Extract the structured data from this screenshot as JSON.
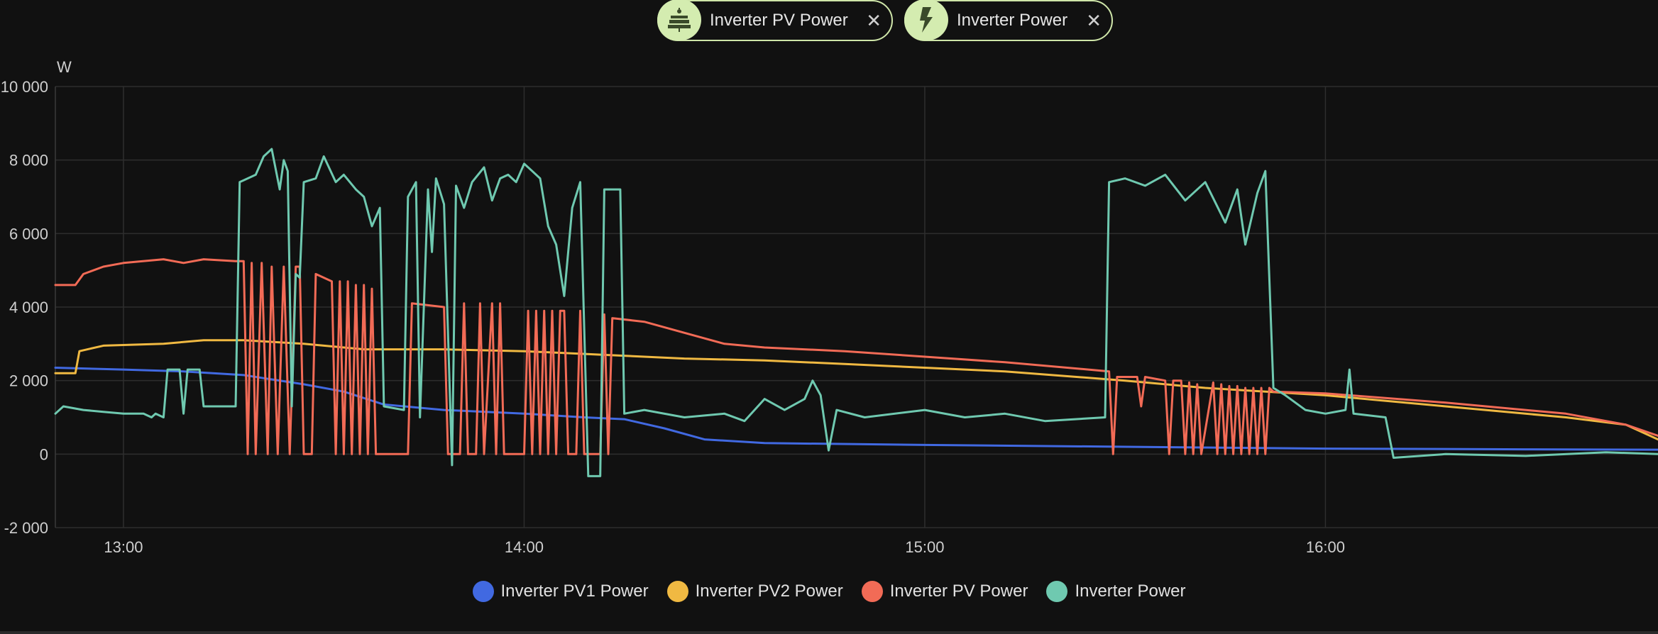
{
  "filters": [
    {
      "label": "Inverter PV Power",
      "icon": "solar-panel-icon",
      "close": "✕"
    },
    {
      "label": "Inverter Power",
      "icon": "lightning-bolt-icon",
      "close": "✕"
    }
  ],
  "colors": {
    "background": "#111111",
    "grid": "#2e2e2e",
    "axis_text": "#cfcfcf",
    "chip_border": "#cfe6a9",
    "chip_icon_bg": "#d4ecb0"
  },
  "chart_data": {
    "type": "line",
    "ylabel": "W",
    "xlabel": "",
    "ylim": [
      -2000,
      10000
    ],
    "yticks": [
      -2000,
      0,
      2000,
      4000,
      6000,
      8000,
      10000
    ],
    "ytick_labels": [
      "-2 000",
      "0",
      "2 000",
      "4 000",
      "6 000",
      "8 000",
      "10 000"
    ],
    "xlim": [
      12.83,
      16.83
    ],
    "xticks": [
      13,
      14,
      15,
      16
    ],
    "xtick_labels": [
      "13:00",
      "14:00",
      "15:00",
      "16:00"
    ],
    "grid": true,
    "legend_position": "bottom-center",
    "series": [
      {
        "name": "Inverter PV1 Power",
        "color": "#4169e1",
        "points": [
          [
            12.83,
            2350
          ],
          [
            13.0,
            2300
          ],
          [
            13.15,
            2250
          ],
          [
            13.3,
            2150
          ],
          [
            13.45,
            1900
          ],
          [
            13.55,
            1700
          ],
          [
            13.65,
            1350
          ],
          [
            13.8,
            1200
          ],
          [
            14.0,
            1100
          ],
          [
            14.15,
            1000
          ],
          [
            14.25,
            950
          ],
          [
            14.35,
            700
          ],
          [
            14.45,
            400
          ],
          [
            14.6,
            300
          ],
          [
            15.0,
            250
          ],
          [
            15.5,
            200
          ],
          [
            16.0,
            150
          ],
          [
            16.5,
            130
          ],
          [
            16.83,
            120
          ]
        ]
      },
      {
        "name": "Inverter PV2 Power",
        "color": "#f0b942",
        "points": [
          [
            12.83,
            2200
          ],
          [
            12.88,
            2200
          ],
          [
            12.89,
            2800
          ],
          [
            12.95,
            2950
          ],
          [
            13.1,
            3000
          ],
          [
            13.2,
            3100
          ],
          [
            13.3,
            3100
          ],
          [
            13.45,
            3000
          ],
          [
            13.6,
            2850
          ],
          [
            13.8,
            2850
          ],
          [
            14.0,
            2800
          ],
          [
            14.2,
            2700
          ],
          [
            14.4,
            2600
          ],
          [
            14.6,
            2550
          ],
          [
            14.8,
            2450
          ],
          [
            15.0,
            2350
          ],
          [
            15.2,
            2250
          ],
          [
            15.5,
            2000
          ],
          [
            15.7,
            1800
          ],
          [
            16.0,
            1600
          ],
          [
            16.3,
            1300
          ],
          [
            16.6,
            1000
          ],
          [
            16.75,
            800
          ],
          [
            16.83,
            400
          ]
        ]
      },
      {
        "name": "Inverter PV Power",
        "color": "#f26b56",
        "points": [
          [
            12.83,
            4600
          ],
          [
            12.88,
            4600
          ],
          [
            12.9,
            4900
          ],
          [
            12.95,
            5100
          ],
          [
            13.0,
            5200
          ],
          [
            13.1,
            5300
          ],
          [
            13.15,
            5200
          ],
          [
            13.2,
            5300
          ],
          [
            13.28,
            5250
          ],
          [
            13.3,
            5250
          ],
          [
            13.31,
            0
          ],
          [
            13.32,
            5200
          ],
          [
            13.33,
            0
          ],
          [
            13.345,
            5200
          ],
          [
            13.36,
            0
          ],
          [
            13.37,
            5100
          ],
          [
            13.385,
            0
          ],
          [
            13.4,
            5100
          ],
          [
            13.415,
            0
          ],
          [
            13.43,
            5100
          ],
          [
            13.44,
            5100
          ],
          [
            13.45,
            0
          ],
          [
            13.47,
            0
          ],
          [
            13.48,
            4900
          ],
          [
            13.52,
            4700
          ],
          [
            13.53,
            0
          ],
          [
            13.54,
            4700
          ],
          [
            13.55,
            0
          ],
          [
            13.56,
            4700
          ],
          [
            13.57,
            0
          ],
          [
            13.58,
            4600
          ],
          [
            13.59,
            0
          ],
          [
            13.6,
            4600
          ],
          [
            13.61,
            0
          ],
          [
            13.62,
            4500
          ],
          [
            13.63,
            0
          ],
          [
            13.71,
            0
          ],
          [
            13.72,
            4100
          ],
          [
            13.8,
            4000
          ],
          [
            13.81,
            0
          ],
          [
            13.84,
            0
          ],
          [
            13.85,
            4100
          ],
          [
            13.86,
            0
          ],
          [
            13.88,
            0
          ],
          [
            13.89,
            4100
          ],
          [
            13.9,
            0
          ],
          [
            13.92,
            4100
          ],
          [
            13.93,
            0
          ],
          [
            13.94,
            4100
          ],
          [
            13.95,
            0
          ],
          [
            14.0,
            0
          ],
          [
            14.01,
            3900
          ],
          [
            14.02,
            0
          ],
          [
            14.03,
            3900
          ],
          [
            14.04,
            0
          ],
          [
            14.05,
            3900
          ],
          [
            14.06,
            0
          ],
          [
            14.07,
            3900
          ],
          [
            14.08,
            0
          ],
          [
            14.09,
            3900
          ],
          [
            14.1,
            3900
          ],
          [
            14.11,
            0
          ],
          [
            14.13,
            0
          ],
          [
            14.14,
            3900
          ],
          [
            14.15,
            0
          ],
          [
            14.19,
            0
          ],
          [
            14.2,
            3800
          ],
          [
            14.21,
            0
          ],
          [
            14.22,
            3700
          ],
          [
            14.3,
            3600
          ],
          [
            14.4,
            3300
          ],
          [
            14.5,
            3000
          ],
          [
            14.6,
            2900
          ],
          [
            14.8,
            2800
          ],
          [
            15.0,
            2650
          ],
          [
            15.2,
            2500
          ],
          [
            15.46,
            2250
          ],
          [
            15.47,
            0
          ],
          [
            15.48,
            2100
          ],
          [
            15.53,
            2100
          ],
          [
            15.54,
            1300
          ],
          [
            15.55,
            2100
          ],
          [
            15.6,
            2000
          ],
          [
            15.61,
            0
          ],
          [
            15.62,
            2000
          ],
          [
            15.64,
            2000
          ],
          [
            15.65,
            0
          ],
          [
            15.66,
            1950
          ],
          [
            15.67,
            0
          ],
          [
            15.68,
            1900
          ],
          [
            15.69,
            0
          ],
          [
            15.72,
            1950
          ],
          [
            15.73,
            0
          ],
          [
            15.74,
            1900
          ],
          [
            15.75,
            0
          ],
          [
            15.76,
            1850
          ],
          [
            15.77,
            0
          ],
          [
            15.78,
            1850
          ],
          [
            15.79,
            0
          ],
          [
            15.8,
            1800
          ],
          [
            15.81,
            0
          ],
          [
            15.82,
            1800
          ],
          [
            15.83,
            0
          ],
          [
            15.84,
            1800
          ],
          [
            15.85,
            0
          ],
          [
            15.86,
            1800
          ],
          [
            15.87,
            1700
          ],
          [
            16.0,
            1650
          ],
          [
            16.3,
            1400
          ],
          [
            16.6,
            1100
          ],
          [
            16.75,
            800
          ],
          [
            16.83,
            500
          ]
        ]
      },
      {
        "name": "Inverter Power",
        "color": "#6fc9b0",
        "points": [
          [
            12.83,
            1100
          ],
          [
            12.85,
            1300
          ],
          [
            12.9,
            1200
          ],
          [
            12.95,
            1150
          ],
          [
            13.0,
            1100
          ],
          [
            13.05,
            1100
          ],
          [
            13.07,
            1000
          ],
          [
            13.08,
            1100
          ],
          [
            13.1,
            1000
          ],
          [
            13.11,
            2300
          ],
          [
            13.14,
            2300
          ],
          [
            13.15,
            1100
          ],
          [
            13.16,
            2300
          ],
          [
            13.19,
            2300
          ],
          [
            13.2,
            1300
          ],
          [
            13.28,
            1300
          ],
          [
            13.29,
            7400
          ],
          [
            13.33,
            7600
          ],
          [
            13.35,
            8100
          ],
          [
            13.37,
            8300
          ],
          [
            13.39,
            7200
          ],
          [
            13.4,
            8000
          ],
          [
            13.41,
            7700
          ],
          [
            13.42,
            1300
          ],
          [
            13.43,
            4900
          ],
          [
            13.44,
            4800
          ],
          [
            13.45,
            7400
          ],
          [
            13.48,
            7500
          ],
          [
            13.5,
            8100
          ],
          [
            13.53,
            7400
          ],
          [
            13.55,
            7600
          ],
          [
            13.58,
            7200
          ],
          [
            13.6,
            7000
          ],
          [
            13.62,
            6200
          ],
          [
            13.64,
            6700
          ],
          [
            13.65,
            1300
          ],
          [
            13.7,
            1200
          ],
          [
            13.71,
            7000
          ],
          [
            13.73,
            7400
          ],
          [
            13.74,
            1000
          ],
          [
            13.76,
            7200
          ],
          [
            13.77,
            5500
          ],
          [
            13.78,
            7500
          ],
          [
            13.8,
            6800
          ],
          [
            13.82,
            -300
          ],
          [
            13.83,
            7300
          ],
          [
            13.85,
            6700
          ],
          [
            13.87,
            7400
          ],
          [
            13.9,
            7800
          ],
          [
            13.92,
            6900
          ],
          [
            13.94,
            7500
          ],
          [
            13.96,
            7600
          ],
          [
            13.98,
            7400
          ],
          [
            14.0,
            7900
          ],
          [
            14.02,
            7700
          ],
          [
            14.04,
            7500
          ],
          [
            14.06,
            6200
          ],
          [
            14.08,
            5700
          ],
          [
            14.1,
            4300
          ],
          [
            14.12,
            6700
          ],
          [
            14.14,
            7400
          ],
          [
            14.16,
            -600
          ],
          [
            14.19,
            -600
          ],
          [
            14.2,
            7200
          ],
          [
            14.24,
            7200
          ],
          [
            14.25,
            1100
          ],
          [
            14.3,
            1200
          ],
          [
            14.4,
            1000
          ],
          [
            14.5,
            1100
          ],
          [
            14.55,
            900
          ],
          [
            14.6,
            1500
          ],
          [
            14.65,
            1200
          ],
          [
            14.7,
            1500
          ],
          [
            14.72,
            2000
          ],
          [
            14.74,
            1600
          ],
          [
            14.76,
            100
          ],
          [
            14.78,
            1200
          ],
          [
            14.85,
            1000
          ],
          [
            15.0,
            1200
          ],
          [
            15.1,
            1000
          ],
          [
            15.2,
            1100
          ],
          [
            15.3,
            900
          ],
          [
            15.45,
            1000
          ],
          [
            15.46,
            7400
          ],
          [
            15.5,
            7500
          ],
          [
            15.55,
            7300
          ],
          [
            15.6,
            7600
          ],
          [
            15.65,
            6900
          ],
          [
            15.7,
            7400
          ],
          [
            15.75,
            6300
          ],
          [
            15.78,
            7200
          ],
          [
            15.8,
            5700
          ],
          [
            15.83,
            7100
          ],
          [
            15.85,
            7700
          ],
          [
            15.87,
            1800
          ],
          [
            15.9,
            1600
          ],
          [
            15.95,
            1200
          ],
          [
            16.0,
            1100
          ],
          [
            16.05,
            1200
          ],
          [
            16.06,
            2300
          ],
          [
            16.07,
            1100
          ],
          [
            16.15,
            1000
          ],
          [
            16.17,
            -100
          ],
          [
            16.3,
            0
          ],
          [
            16.5,
            -50
          ],
          [
            16.7,
            50
          ],
          [
            16.83,
            0
          ]
        ]
      }
    ]
  }
}
